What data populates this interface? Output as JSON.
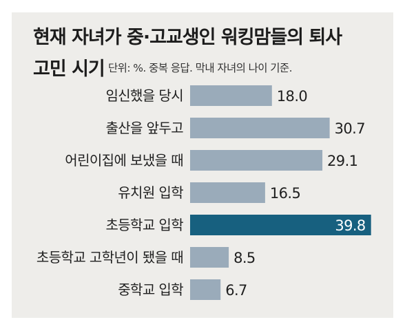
{
  "chart_data": {
    "type": "bar",
    "orientation": "horizontal",
    "title": "현재 자녀가 중·고교생인 워킹맘들의 퇴사 고민 시기",
    "title_line1": "현재 자녀가 중·고교생인 워킹맘들의 퇴사",
    "title_line2": "고민 시기",
    "unit_note": "단위: %. 중복 응답. 막내 자녀의 나이 기준.",
    "categories": [
      "임신했을 당시",
      "출산을 앞두고",
      "어린이집에 보냈을 때",
      "유치원 입학",
      "초등학교 입학",
      "초등학교 고학년이 됐을 때",
      "중학교 입학"
    ],
    "values": [
      18.0,
      30.7,
      29.1,
      16.5,
      39.8,
      8.5,
      6.7
    ],
    "value_labels": [
      "18.0",
      "30.7",
      "29.1",
      "16.5",
      "39.8",
      "8.5",
      "6.7"
    ],
    "highlight_index": 4,
    "grid": false,
    "legend": "none",
    "colors": {
      "bar": "#9aabba",
      "highlight": "#17607f",
      "background": "#eeedea",
      "text": "#1c1c1c"
    }
  }
}
